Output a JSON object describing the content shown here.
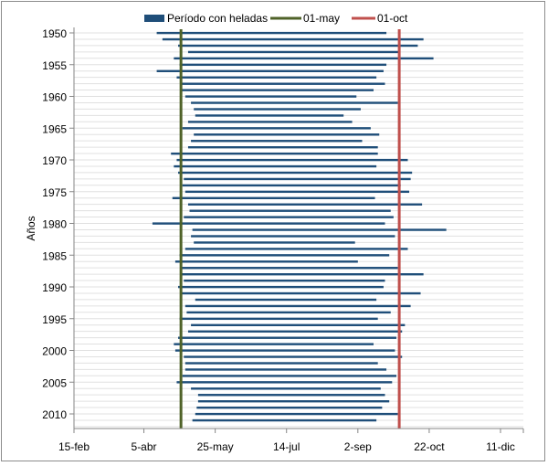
{
  "chart_data": {
    "type": "bar",
    "title": "",
    "xlabel": "",
    "ylabel": "Años",
    "x_axis_day_range": [
      0,
      315
    ],
    "x_ticks": [
      {
        "label": "15-feb",
        "day": 0
      },
      {
        "label": "5-abr",
        "day": 49
      },
      {
        "label": "25-may",
        "day": 99
      },
      {
        "label": "14-jul",
        "day": 149
      },
      {
        "label": "2-sep",
        "day": 199
      },
      {
        "label": "22-oct",
        "day": 249
      },
      {
        "label": "11-dic",
        "day": 299
      }
    ],
    "y_range": [
      1950,
      2012
    ],
    "y_ticks": [
      "1950",
      "1955",
      "1960",
      "1965",
      "1970",
      "1975",
      "1980",
      "1985",
      "1990",
      "1995",
      "2000",
      "2005",
      "2010"
    ],
    "grid": {
      "horizontal": true,
      "vertical": false
    },
    "legend_position": "top",
    "legend": [
      {
        "label": "Período con heladas",
        "color": "#1f4e79",
        "kind": "box"
      },
      {
        "label": "01-may",
        "color": "#4f6228",
        "kind": "line"
      },
      {
        "label": "01-oct",
        "color": "#c0504d",
        "kind": "line"
      }
    ],
    "reference_lines": [
      {
        "name": "01-may",
        "day": 75,
        "color": "#4f6228"
      },
      {
        "name": "01-oct",
        "day": 228,
        "color": "#c0504d"
      }
    ],
    "series": [
      {
        "name": "Período con heladas",
        "color": "#1f4e79",
        "years": [
          1950,
          1951,
          1952,
          1953,
          1954,
          1955,
          1956,
          1957,
          1958,
          1959,
          1960,
          1961,
          1962,
          1963,
          1964,
          1965,
          1966,
          1967,
          1968,
          1969,
          1970,
          1971,
          1972,
          1973,
          1974,
          1975,
          1976,
          1977,
          1978,
          1979,
          1980,
          1981,
          1982,
          1983,
          1984,
          1985,
          1986,
          1987,
          1988,
          1989,
          1990,
          1991,
          1992,
          1993,
          1994,
          1995,
          1996,
          1997,
          1998,
          1999,
          2000,
          2001,
          2002,
          2003,
          2004,
          2005,
          2006,
          2007,
          2008,
          2009,
          2010,
          2011
        ],
        "start_day": [
          58,
          62,
          73,
          80,
          70,
          74,
          58,
          72,
          75,
          75,
          78,
          82,
          84,
          85,
          80,
          76,
          84,
          82,
          80,
          68,
          72,
          70,
          73,
          77,
          76,
          78,
          69,
          80,
          81,
          77,
          55,
          83,
          82,
          84,
          78,
          74,
          71,
          75,
          75,
          77,
          73,
          75,
          85,
          78,
          79,
          74,
          82,
          80,
          73,
          70,
          71,
          77,
          78,
          78,
          76,
          72,
          82,
          87,
          87,
          86,
          85,
          83
        ],
        "end_day": [
          219,
          245,
          241,
          228,
          252,
          219,
          217,
          212,
          218,
          210,
          198,
          227,
          201,
          189,
          195,
          208,
          214,
          202,
          213,
          213,
          234,
          212,
          237,
          236,
          229,
          235,
          211,
          244,
          222,
          224,
          218,
          261,
          225,
          197,
          234,
          221,
          199,
          227,
          245,
          218,
          217,
          243,
          212,
          236,
          222,
          213,
          232,
          230,
          226,
          210,
          225,
          230,
          213,
          219,
          226,
          223,
          215,
          218,
          221,
          216,
          227,
          212
        ]
      }
    ]
  }
}
